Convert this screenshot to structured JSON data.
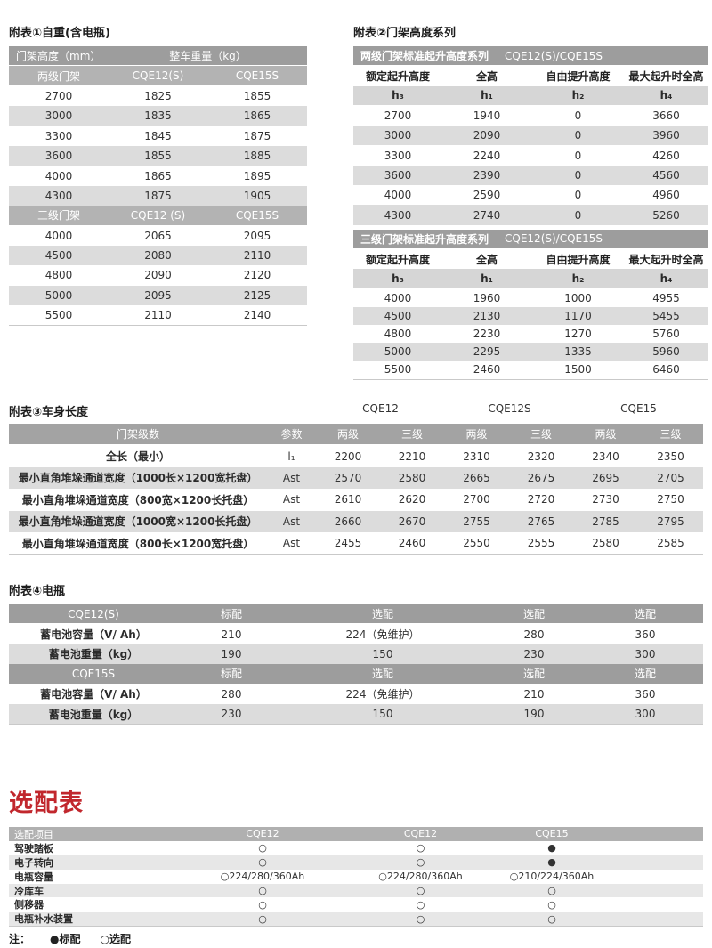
{
  "colors": {
    "hdark": "#9d9d9d",
    "hmed": "#b3b3b3",
    "hsub": "#d6d6d6",
    "stripe": "#dcdcdc",
    "stripelight": "#e7e7e7",
    "t3h": "#a3a3a3",
    "hopts": "#b0b0b0",
    "red": "#c1272d"
  },
  "table1": {
    "title": "附表①自重(含电瓶)",
    "col_group_headers": [
      "门架高度（mm）",
      "整车重量（kg）"
    ],
    "sections": [
      {
        "header": [
          "两级门架",
          "CQE12(S)",
          "CQE15S"
        ],
        "rows": [
          [
            "2700",
            "1825",
            "1855"
          ],
          [
            "3000",
            "1835",
            "1865"
          ],
          [
            "3300",
            "1845",
            "1875"
          ],
          [
            "3600",
            "1855",
            "1885"
          ],
          [
            "4000",
            "1865",
            "1895"
          ],
          [
            "4300",
            "1875",
            "1905"
          ]
        ]
      },
      {
        "header": [
          "三级门架",
          "CQE12 (S)",
          "CQE15S"
        ],
        "rows": [
          [
            "4000",
            "2065",
            "2095"
          ],
          [
            "4500",
            "2080",
            "2110"
          ],
          [
            "4800",
            "2090",
            "2120"
          ],
          [
            "5000",
            "2095",
            "2125"
          ],
          [
            "5500",
            "2110",
            "2140"
          ]
        ]
      }
    ]
  },
  "table2": {
    "title": "附表②门架高度系列",
    "sections": [
      {
        "band_title": "两级门架标准起升高度系列",
        "band_model": "CQE12(S)/CQE15S",
        "col_headers": [
          "额定起升高度",
          "全高",
          "自由提升高度",
          "最大起升时全高"
        ],
        "symbols": [
          "h₃",
          "h₁",
          "h₂",
          "h₄"
        ],
        "rows": [
          [
            "2700",
            "1940",
            "0",
            "3660"
          ],
          [
            "3000",
            "2090",
            "0",
            "3960"
          ],
          [
            "3300",
            "2240",
            "0",
            "4260"
          ],
          [
            "3600",
            "2390",
            "0",
            "4560"
          ],
          [
            "4000",
            "2590",
            "0",
            "4960"
          ],
          [
            "4300",
            "2740",
            "0",
            "5260"
          ]
        ]
      },
      {
        "band_title": "三级门架标准起升高度系列",
        "band_model": "CQE12(S)/CQE15S",
        "col_headers": [
          "额定起升高度",
          "全高",
          "自由提升高度",
          "最大起升时全高"
        ],
        "symbols": [
          "h₃",
          "h₁",
          "h₂",
          "h₄"
        ],
        "rows": [
          [
            "4000",
            "1960",
            "1000",
            "4955"
          ],
          [
            "4500",
            "2130",
            "1170",
            "5455"
          ],
          [
            "4800",
            "2230",
            "1270",
            "5760"
          ],
          [
            "5000",
            "2295",
            "1335",
            "5960"
          ],
          [
            "5500",
            "2460",
            "1500",
            "6460"
          ]
        ]
      }
    ]
  },
  "table3": {
    "title": "附表③车身长度",
    "models": [
      "CQE12",
      "CQE12S",
      "CQE15"
    ],
    "header": {
      "label": "门架级数",
      "param": "参数",
      "cols": [
        "两级",
        "三级",
        "两级",
        "三级",
        "两级",
        "三级"
      ]
    },
    "rows": [
      {
        "label": "全长（最小）",
        "param": "l₁",
        "values": [
          "2200",
          "2210",
          "2310",
          "2320",
          "2340",
          "2350"
        ]
      },
      {
        "label": "最小直角堆垛通道宽度（1000长×1200宽托盘）",
        "param": "Ast",
        "values": [
          "2570",
          "2580",
          "2665",
          "2675",
          "2695",
          "2705"
        ]
      },
      {
        "label": "最小直角堆垛通道宽度（800宽×1200长托盘）",
        "param": "Ast",
        "values": [
          "2610",
          "2620",
          "2700",
          "2720",
          "2730",
          "2750"
        ]
      },
      {
        "label": "最小直角堆垛通道宽度（1000宽×1200长托盘）",
        "param": "Ast",
        "values": [
          "2660",
          "2670",
          "2755",
          "2765",
          "2785",
          "2795"
        ]
      },
      {
        "label": "最小直角堆垛通道宽度（800长×1200宽托盘）",
        "param": "Ast",
        "values": [
          "2455",
          "2460",
          "2550",
          "2555",
          "2580",
          "2585"
        ]
      }
    ]
  },
  "table4": {
    "title": "附表④电瓶",
    "sections": [
      {
        "model": "CQE12(S)",
        "config_headers": [
          "标配",
          "选配",
          "选配",
          "选配"
        ],
        "rows": [
          {
            "label": "蓄电池容量（V/ Ah）",
            "values": [
              "210",
              "224（免维护）",
              "280",
              "360"
            ]
          },
          {
            "label": "蓄电池重量（kg）",
            "values": [
              "190",
              "150",
              "230",
              "300"
            ]
          }
        ]
      },
      {
        "model": "CQE15S",
        "config_headers": [
          "标配",
          "选配",
          "选配",
          "选配"
        ],
        "rows": [
          {
            "label": "蓄电池容量（V/ Ah）",
            "values": [
              "280",
              "224（免维护）",
              "210",
              "360"
            ]
          },
          {
            "label": "蓄电池重量（kg）",
            "values": [
              "230",
              "150",
              "190",
              "300"
            ]
          }
        ]
      }
    ]
  },
  "options_table": {
    "title": "选配表",
    "header": [
      "选配项目",
      "CQE12",
      "CQE12",
      "CQE15"
    ],
    "rows": [
      {
        "label": "驾驶踏板",
        "values": [
          "○",
          "○",
          "●"
        ]
      },
      {
        "label": "电子转向",
        "values": [
          "○",
          "○",
          "●"
        ]
      },
      {
        "label": "电瓶容量",
        "values": [
          "○224/280/360Ah",
          "○224/280/360Ah",
          "○210/224/360Ah"
        ]
      },
      {
        "label": "冷库车",
        "values": [
          "○",
          "○",
          "○"
        ]
      },
      {
        "label": "侧移器",
        "values": [
          "○",
          "○",
          "○"
        ]
      },
      {
        "label": "电瓶补水装置",
        "values": [
          "○",
          "○",
          "○"
        ]
      }
    ],
    "note": {
      "prefix": "注：",
      "standard": "●标配",
      "optional": "○选配"
    }
  }
}
